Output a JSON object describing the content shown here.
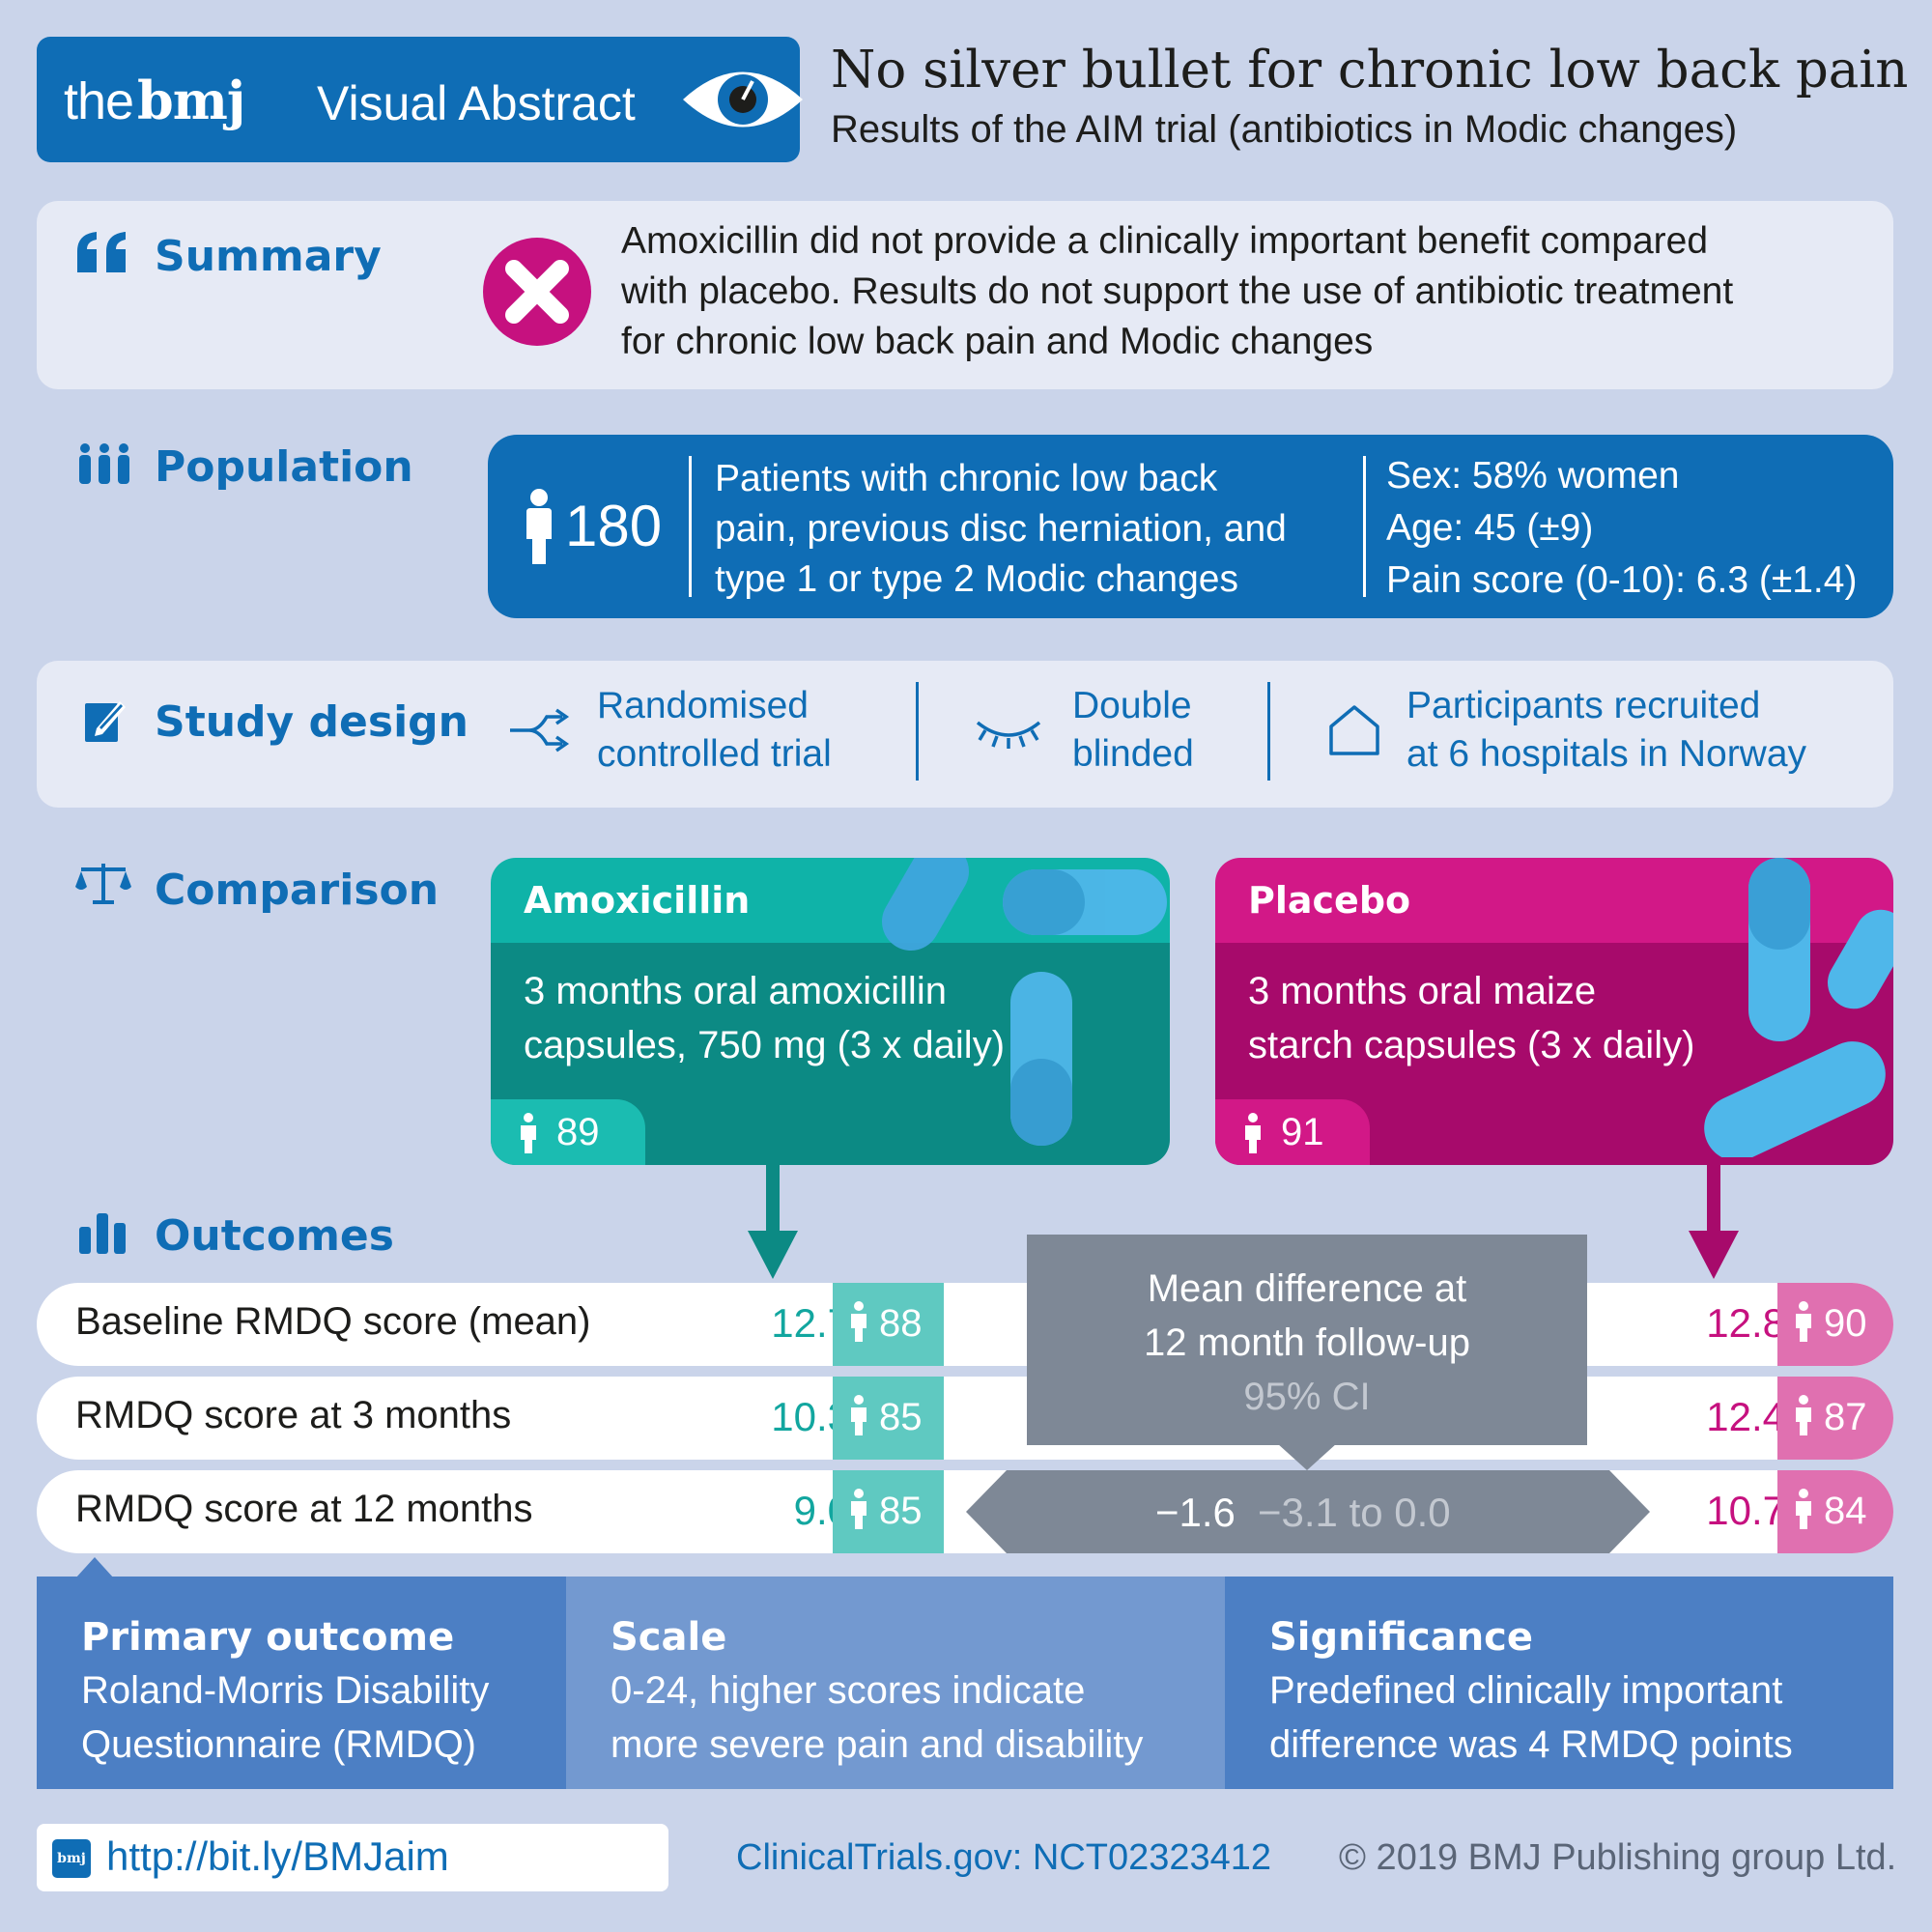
{
  "header": {
    "logo_the": "the",
    "logo_bmj": "bmj",
    "label": "Visual Abstract",
    "title": "No silver bullet for chronic low back pain",
    "subtitle": "Results of the AIM trial (antibiotics in Modic changes)"
  },
  "summary": {
    "heading": "Summary",
    "lines": [
      "Amoxicillin did not provide a clinically important benefit compared",
      "with placebo. Results do not support the use of antibiotic treatment",
      "for chronic low back pain and Modic changes"
    ]
  },
  "population": {
    "heading": "Population",
    "count": "180",
    "description": [
      "Patients with chronic low back",
      "pain, previous disc herniation, and",
      "type 1 or type 2 Modic changes"
    ],
    "stats": [
      "Sex: 58% women",
      "Age: 45 (±9)",
      "Pain score (0-10): 6.3 (±1.4)"
    ]
  },
  "study_design": {
    "heading": "Study design",
    "items": [
      {
        "line1": "Randomised",
        "line2": "controlled trial",
        "icon": "branch-arrows-icon"
      },
      {
        "line1": "Double",
        "line2": "blinded",
        "icon": "closed-eye-icon"
      },
      {
        "line1": "Participants recruited",
        "line2": "at 6 hospitals in Norway",
        "icon": "house-icon"
      }
    ]
  },
  "comparison": {
    "heading": "Comparison",
    "amoxicillin": {
      "title": "Amoxicillin",
      "line1": "3 months oral amoxicillin",
      "line2": "capsules, 750 mg (3 x daily)",
      "n": "89"
    },
    "placebo": {
      "title": "Placebo",
      "line1": "3 months oral maize",
      "line2": "starch capsules (3 x daily)",
      "n": "91"
    }
  },
  "outcomes": {
    "heading": "Outcomes",
    "rows": [
      {
        "label": "Baseline RMDQ score (mean)",
        "amox_value": "12.7",
        "amox_n": "88",
        "placebo_value": "12.8",
        "placebo_n": "90"
      },
      {
        "label": "RMDQ score at 3 months",
        "amox_value": "10.3",
        "amox_n": "85",
        "placebo_value": "12.4",
        "placebo_n": "87"
      },
      {
        "label": "RMDQ score at 12 months",
        "amox_value": "9.0",
        "amox_n": "85",
        "placebo_value": "10.7",
        "placebo_n": "84"
      }
    ],
    "mean_diff_line1": "Mean difference at",
    "mean_diff_line2": "12 month follow-up",
    "ci_label": "95% CI",
    "mean_diff_value": "−1.6",
    "ci_value": "−3.1 to 0.0"
  },
  "details": {
    "primary": {
      "heading": "Primary outcome",
      "line1": "Roland-Morris Disability",
      "line2": "Questionnaire (RMDQ)"
    },
    "scale": {
      "heading": "Scale",
      "line1": "0-24, higher scores indicate",
      "line2": "more severe pain and disability"
    },
    "significance": {
      "heading": "Significance",
      "line1": "Predefined clinically important",
      "line2": "difference was 4 RMDQ points"
    }
  },
  "footer": {
    "badge": "bmj",
    "url": "http://bit.ly/BMJaim",
    "registry": "ClinicalTrials.gov: NCT02323412",
    "copyright": "© 2019 BMJ Publishing group Ltd."
  },
  "colors": {
    "brand_blue": "#0f6db5",
    "teal": "#12a69f",
    "magenta": "#c6117f",
    "background": "#cad4ea"
  }
}
